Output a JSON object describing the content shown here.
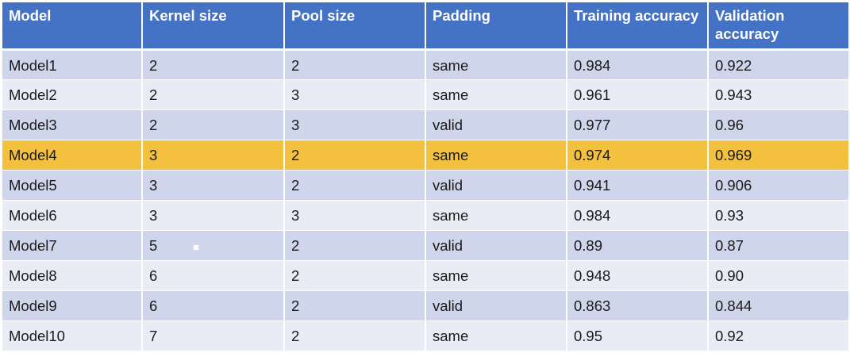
{
  "table": {
    "headers": [
      "Model",
      "Kernel size",
      "Pool size",
      "Padding",
      "Training accuracy",
      "Validation accuracy"
    ],
    "highlight_row_index": 3,
    "highlight_color": "#f4c13f",
    "header_color": "#4472c4",
    "rows": [
      [
        "Model1",
        "2",
        "2",
        "same",
        "0.984",
        "0.922"
      ],
      [
        "Model2",
        "2",
        "3",
        "same",
        "0.961",
        "0.943"
      ],
      [
        "Model3",
        "2",
        "3",
        "valid",
        "0.977",
        "0.96"
      ],
      [
        "Model4",
        "3",
        "2",
        "same",
        "0.974",
        "0.969"
      ],
      [
        "Model5",
        "3",
        "2",
        "valid",
        "0.941",
        "0.906"
      ],
      [
        "Model6",
        "3",
        "3",
        "same",
        "0.984",
        "0.93"
      ],
      [
        "Model7",
        "5",
        "2",
        "valid",
        "0.89",
        "0.87"
      ],
      [
        "Model8",
        "6",
        "2",
        "same",
        "0.948",
        "0.90"
      ],
      [
        "Model9",
        "6",
        "2",
        "valid",
        "0.863",
        "0.844"
      ],
      [
        "Model10",
        "7",
        "2",
        "same",
        "0.95",
        "0.92"
      ]
    ]
  }
}
